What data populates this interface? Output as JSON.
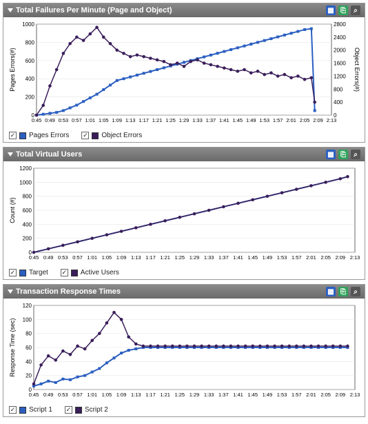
{
  "colors": {
    "series_blue": "#2b5fc1",
    "series_purple": "#3a1e5a",
    "axis": "#000000",
    "grid": "#e0e0e0",
    "panel_bg": "#ffffff",
    "header_top": "#8a8a8a",
    "header_bottom": "#6a6a6a",
    "header_text": "#ffffff"
  },
  "fonts": {
    "title_size_pt": 11,
    "axis_label_size_pt": 9,
    "tick_size_pt": 8,
    "legend_size_pt": 10
  },
  "x_axis": {
    "ticks": [
      "0:45",
      "0:49",
      "0:53",
      "0:57",
      "1:01",
      "1:05",
      "1:09",
      "1:13",
      "1:17",
      "1:21",
      "1:25",
      "1:29",
      "1:33",
      "1:37",
      "1:41",
      "1:45",
      "1:49",
      "1:53",
      "1:57",
      "2:01",
      "2:05",
      "2:09",
      "2:13"
    ],
    "x_values": [
      45,
      49,
      53,
      57,
      61,
      65,
      69,
      73,
      77,
      81,
      85,
      89,
      93,
      97,
      101,
      105,
      109,
      113,
      117,
      121,
      125,
      129,
      133
    ]
  },
  "panels": [
    {
      "id": "failures",
      "title": "Total Failures Per Minute (Page and Object)",
      "type": "line",
      "height": 160,
      "y_left": {
        "label": "Pages Errors(#)",
        "lim": [
          0,
          1000
        ],
        "step": 200
      },
      "y_right": {
        "label": "Object Errors(#)",
        "lim": [
          0,
          2800
        ],
        "step": 400
      },
      "series": [
        {
          "name": "Pages Errors",
          "color": "#2b5fc1",
          "marker": "square",
          "marker_size": 4,
          "line_width": 2,
          "y_axis": "left",
          "data": [
            [
              45,
              0
            ],
            [
              47,
              10
            ],
            [
              49,
              20
            ],
            [
              51,
              30
            ],
            [
              53,
              50
            ],
            [
              55,
              80
            ],
            [
              57,
              110
            ],
            [
              59,
              150
            ],
            [
              61,
              190
            ],
            [
              63,
              230
            ],
            [
              65,
              280
            ],
            [
              67,
              330
            ],
            [
              69,
              380
            ],
            [
              71,
              400
            ],
            [
              73,
              420
            ],
            [
              75,
              440
            ],
            [
              77,
              460
            ],
            [
              79,
              480
            ],
            [
              81,
              500
            ],
            [
              83,
              520
            ],
            [
              85,
              540
            ],
            [
              87,
              560
            ],
            [
              89,
              580
            ],
            [
              91,
              600
            ],
            [
              93,
              620
            ],
            [
              95,
              640
            ],
            [
              97,
              660
            ],
            [
              99,
              680
            ],
            [
              101,
              700
            ],
            [
              103,
              720
            ],
            [
              105,
              740
            ],
            [
              107,
              760
            ],
            [
              109,
              780
            ],
            [
              111,
              800
            ],
            [
              113,
              820
            ],
            [
              115,
              840
            ],
            [
              117,
              860
            ],
            [
              119,
              880
            ],
            [
              121,
              900
            ],
            [
              123,
              920
            ],
            [
              125,
              940
            ],
            [
              127,
              950
            ],
            [
              128,
              50
            ]
          ]
        },
        {
          "name": "Object Errors",
          "color": "#3a1e5a",
          "marker": "circle",
          "marker_size": 3,
          "line_width": 1.5,
          "y_axis": "right",
          "data": [
            [
              45,
              0
            ],
            [
              47,
              300
            ],
            [
              49,
              900
            ],
            [
              51,
              1400
            ],
            [
              53,
              1900
            ],
            [
              55,
              2200
            ],
            [
              57,
              2400
            ],
            [
              59,
              2300
            ],
            [
              61,
              2500
            ],
            [
              63,
              2700
            ],
            [
              65,
              2400
            ],
            [
              67,
              2200
            ],
            [
              69,
              2000
            ],
            [
              71,
              1900
            ],
            [
              73,
              1800
            ],
            [
              75,
              1850
            ],
            [
              77,
              1800
            ],
            [
              79,
              1750
            ],
            [
              81,
              1700
            ],
            [
              83,
              1650
            ],
            [
              85,
              1550
            ],
            [
              87,
              1600
            ],
            [
              89,
              1500
            ],
            [
              91,
              1650
            ],
            [
              93,
              1700
            ],
            [
              95,
              1600
            ],
            [
              97,
              1550
            ],
            [
              99,
              1500
            ],
            [
              101,
              1450
            ],
            [
              103,
              1400
            ],
            [
              105,
              1350
            ],
            [
              107,
              1400
            ],
            [
              109,
              1300
            ],
            [
              111,
              1350
            ],
            [
              113,
              1250
            ],
            [
              115,
              1300
            ],
            [
              117,
              1200
            ],
            [
              119,
              1250
            ],
            [
              121,
              1150
            ],
            [
              123,
              1200
            ],
            [
              125,
              1100
            ],
            [
              127,
              1150
            ],
            [
              128,
              400
            ]
          ]
        }
      ],
      "legend": [
        {
          "label": "Pages Errors",
          "color": "#2b5fc1"
        },
        {
          "label": "Object Errors",
          "color": "#3a1e5a"
        }
      ]
    },
    {
      "id": "vusers",
      "title": "Total Virtual Users",
      "type": "line",
      "height": 150,
      "y_left": {
        "label": "Count (#)",
        "lim": [
          0,
          1200
        ],
        "step": 200
      },
      "y_right": null,
      "series": [
        {
          "name": "Target",
          "color": "#2b5fc1",
          "marker": "square",
          "marker_size": 3,
          "line_width": 2,
          "y_axis": "left",
          "data": [
            [
              45,
              0
            ],
            [
              49,
              50
            ],
            [
              53,
              100
            ],
            [
              57,
              150
            ],
            [
              61,
              200
            ],
            [
              65,
              250
            ],
            [
              69,
              300
            ],
            [
              73,
              350
            ],
            [
              77,
              400
            ],
            [
              81,
              450
            ],
            [
              85,
              500
            ],
            [
              89,
              550
            ],
            [
              93,
              600
            ],
            [
              97,
              650
            ],
            [
              101,
              700
            ],
            [
              105,
              750
            ],
            [
              109,
              800
            ],
            [
              113,
              850
            ],
            [
              117,
              900
            ],
            [
              121,
              950
            ],
            [
              125,
              1000
            ],
            [
              129,
              1050
            ],
            [
              131,
              1080
            ]
          ]
        },
        {
          "name": "Active Users",
          "color": "#3a1e5a",
          "marker": "circle",
          "marker_size": 3,
          "line_width": 1.5,
          "y_axis": "left",
          "data": [
            [
              45,
              0
            ],
            [
              49,
              50
            ],
            [
              53,
              100
            ],
            [
              57,
              150
            ],
            [
              61,
              200
            ],
            [
              65,
              250
            ],
            [
              69,
              300
            ],
            [
              73,
              350
            ],
            [
              77,
              400
            ],
            [
              81,
              450
            ],
            [
              85,
              500
            ],
            [
              89,
              550
            ],
            [
              93,
              600
            ],
            [
              97,
              650
            ],
            [
              101,
              700
            ],
            [
              105,
              750
            ],
            [
              109,
              800
            ],
            [
              113,
              850
            ],
            [
              117,
              900
            ],
            [
              121,
              950
            ],
            [
              125,
              1000
            ],
            [
              129,
              1050
            ],
            [
              131,
              1080
            ]
          ]
        }
      ],
      "legend": [
        {
          "label": "Target",
          "color": "#2b5fc1"
        },
        {
          "label": "Active Users",
          "color": "#3a1e5a"
        }
      ]
    },
    {
      "id": "response",
      "title": "Transaction Response Times",
      "type": "line",
      "height": 150,
      "y_left": {
        "label": "Response Time (sec)",
        "lim": [
          0,
          120
        ],
        "step": 20
      },
      "y_right": null,
      "series": [
        {
          "name": "Script 1",
          "color": "#2b5fc1",
          "marker": "square",
          "marker_size": 4,
          "line_width": 2,
          "y_axis": "left",
          "data": [
            [
              45,
              5
            ],
            [
              47,
              8
            ],
            [
              49,
              12
            ],
            [
              51,
              10
            ],
            [
              53,
              15
            ],
            [
              55,
              14
            ],
            [
              57,
              18
            ],
            [
              59,
              20
            ],
            [
              61,
              25
            ],
            [
              63,
              30
            ],
            [
              65,
              38
            ],
            [
              67,
              45
            ],
            [
              69,
              52
            ],
            [
              71,
              56
            ],
            [
              73,
              58
            ],
            [
              75,
              60
            ],
            [
              77,
              60
            ],
            [
              79,
              60
            ],
            [
              81,
              60
            ],
            [
              83,
              60
            ],
            [
              85,
              60
            ],
            [
              87,
              60
            ],
            [
              89,
              60
            ],
            [
              91,
              60
            ],
            [
              93,
              60
            ],
            [
              95,
              60
            ],
            [
              97,
              60
            ],
            [
              99,
              60
            ],
            [
              101,
              60
            ],
            [
              103,
              60
            ],
            [
              105,
              60
            ],
            [
              107,
              60
            ],
            [
              109,
              60
            ],
            [
              111,
              60
            ],
            [
              113,
              60
            ],
            [
              115,
              60
            ],
            [
              117,
              60
            ],
            [
              119,
              60
            ],
            [
              121,
              60
            ],
            [
              123,
              60
            ],
            [
              125,
              60
            ],
            [
              127,
              60
            ],
            [
              129,
              60
            ],
            [
              131,
              60
            ]
          ]
        },
        {
          "name": "Script 2",
          "color": "#3a1e5a",
          "marker": "circle",
          "marker_size": 3,
          "line_width": 1.5,
          "y_axis": "left",
          "data": [
            [
              45,
              8
            ],
            [
              47,
              35
            ],
            [
              49,
              48
            ],
            [
              51,
              42
            ],
            [
              53,
              55
            ],
            [
              55,
              50
            ],
            [
              57,
              62
            ],
            [
              59,
              58
            ],
            [
              61,
              70
            ],
            [
              63,
              80
            ],
            [
              65,
              95
            ],
            [
              67,
              110
            ],
            [
              69,
              100
            ],
            [
              71,
              75
            ],
            [
              73,
              65
            ],
            [
              75,
              62
            ],
            [
              77,
              62
            ],
            [
              79,
              62
            ],
            [
              81,
              62
            ],
            [
              83,
              62
            ],
            [
              85,
              62
            ],
            [
              87,
              62
            ],
            [
              89,
              62
            ],
            [
              91,
              62
            ],
            [
              93,
              62
            ],
            [
              95,
              62
            ],
            [
              97,
              62
            ],
            [
              99,
              62
            ],
            [
              101,
              62
            ],
            [
              103,
              62
            ],
            [
              105,
              62
            ],
            [
              107,
              62
            ],
            [
              109,
              62
            ],
            [
              111,
              62
            ],
            [
              113,
              62
            ],
            [
              115,
              62
            ],
            [
              117,
              62
            ],
            [
              119,
              62
            ],
            [
              121,
              62
            ],
            [
              123,
              62
            ],
            [
              125,
              62
            ],
            [
              127,
              62
            ],
            [
              129,
              62
            ],
            [
              131,
              62
            ]
          ]
        }
      ],
      "legend": [
        {
          "label": "Script 1",
          "color": "#2b5fc1"
        },
        {
          "label": "Script 2",
          "color": "#3a1e5a"
        }
      ]
    }
  ]
}
